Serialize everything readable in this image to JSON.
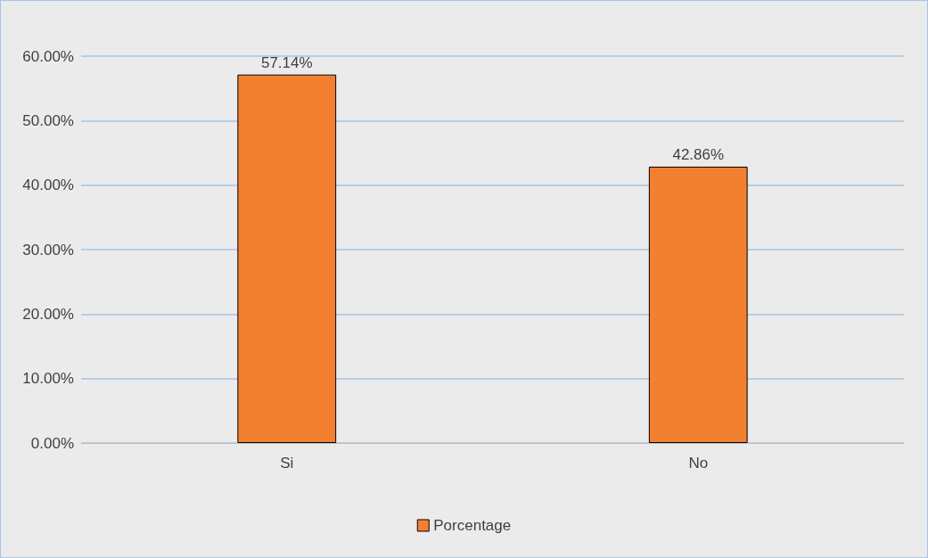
{
  "chart_data": {
    "type": "bar",
    "categories": [
      "Si",
      "No"
    ],
    "series": [
      {
        "name": "Porcentage",
        "color": "#f28030",
        "values": [
          57.14,
          42.86
        ],
        "value_labels": [
          "57.14%",
          "42.86%"
        ]
      }
    ],
    "ylim": [
      0,
      60
    ],
    "yticks": [
      {
        "value": 0,
        "label": "0.00%"
      },
      {
        "value": 10,
        "label": "10.00%"
      },
      {
        "value": 20,
        "label": "20.00%"
      },
      {
        "value": 30,
        "label": "30.00%"
      },
      {
        "value": 40,
        "label": "40.00%"
      },
      {
        "value": 50,
        "label": "50.00%"
      },
      {
        "value": 60,
        "label": "60.00%"
      }
    ],
    "grid": "y",
    "legend": "bottom"
  }
}
